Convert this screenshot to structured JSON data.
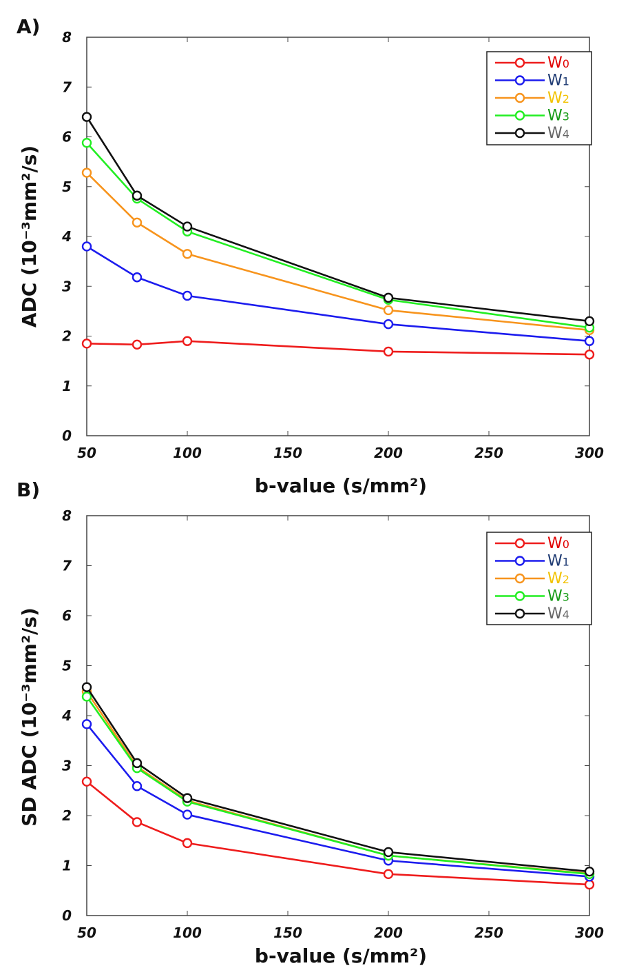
{
  "chart_data": [
    {
      "type": "line",
      "panel_label": "A)",
      "xlabel": "b-value (s/mm²)",
      "ylabel": "ADC (10⁻³mm²/s)",
      "xlim": [
        50,
        300
      ],
      "ylim": [
        0,
        8
      ],
      "xticks": [
        50,
        100,
        150,
        200,
        250,
        300
      ],
      "yticks": [
        0,
        1,
        2,
        3,
        4,
        5,
        6,
        7,
        8
      ],
      "legend_position": "top-right",
      "x": [
        50,
        75,
        100,
        200,
        300
      ],
      "series": [
        {
          "name": "W0",
          "letter": "W",
          "sub": "0",
          "color": "#ee1c1c",
          "label_color": "#e00000",
          "values": [
            1.85,
            1.83,
            1.9,
            1.69,
            1.63
          ]
        },
        {
          "name": "W1",
          "letter": "W",
          "sub": "1",
          "color": "#1c1cee",
          "label_color": "#1f3b73",
          "values": [
            3.8,
            3.18,
            2.81,
            2.24,
            1.9
          ]
        },
        {
          "name": "W2",
          "letter": "W",
          "sub": "2",
          "color": "#f7941d",
          "label_color": "#f2c200",
          "values": [
            5.28,
            4.28,
            3.65,
            2.52,
            2.12
          ]
        },
        {
          "name": "W3",
          "letter": "W",
          "sub": "3",
          "color": "#22ee22",
          "label_color": "#169b16",
          "values": [
            5.88,
            4.76,
            4.1,
            2.73,
            2.17
          ]
        },
        {
          "name": "W4",
          "letter": "W",
          "sub": "4",
          "color": "#111111",
          "label_color": "#666666",
          "values": [
            6.4,
            4.82,
            4.2,
            2.77,
            2.3
          ]
        }
      ]
    },
    {
      "type": "line",
      "panel_label": "B)",
      "xlabel": "b-value (s/mm²)",
      "ylabel": "SD ADC (10⁻³mm²/s)",
      "xlim": [
        50,
        300
      ],
      "ylim": [
        0,
        8
      ],
      "xticks": [
        50,
        100,
        150,
        200,
        250,
        300
      ],
      "yticks": [
        0,
        1,
        2,
        3,
        4,
        5,
        6,
        7,
        8
      ],
      "legend_position": "top-right",
      "x": [
        50,
        75,
        100,
        200,
        300
      ],
      "series": [
        {
          "name": "W0",
          "letter": "W",
          "sub": "0",
          "color": "#ee1c1c",
          "label_color": "#e00000",
          "values": [
            2.68,
            1.87,
            1.45,
            0.83,
            0.62
          ]
        },
        {
          "name": "W1",
          "letter": "W",
          "sub": "1",
          "color": "#1c1cee",
          "label_color": "#1f3b73",
          "values": [
            3.83,
            2.59,
            2.02,
            1.1,
            0.78
          ]
        },
        {
          "name": "W2",
          "letter": "W",
          "sub": "2",
          "color": "#f7941d",
          "label_color": "#f2c200",
          "values": [
            4.48,
            2.98,
            2.3,
            1.2,
            0.84
          ]
        },
        {
          "name": "W3",
          "letter": "W",
          "sub": "3",
          "color": "#22ee22",
          "label_color": "#169b16",
          "values": [
            4.38,
            2.95,
            2.28,
            1.2,
            0.83
          ]
        },
        {
          "name": "W4",
          "letter": "W",
          "sub": "4",
          "color": "#111111",
          "label_color": "#666666",
          "values": [
            4.57,
            3.05,
            2.35,
            1.27,
            0.88
          ]
        }
      ]
    }
  ]
}
